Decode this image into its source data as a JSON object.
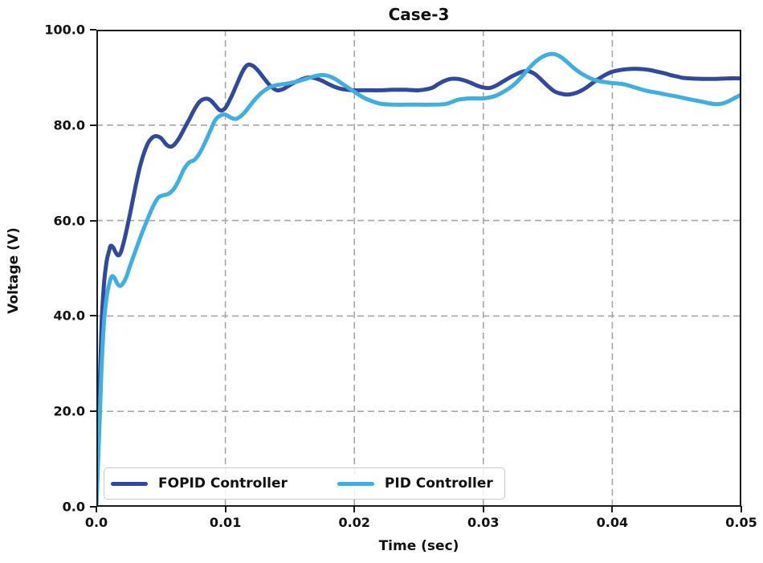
{
  "figure": {
    "title": "Case-3"
  },
  "chart_data": {
    "type": "line",
    "title": "Case-3",
    "xlabel": "Time (sec)",
    "ylabel": "Voltage (V)",
    "xlim": [
      0.0,
      0.05
    ],
    "ylim": [
      0.0,
      100.0
    ],
    "x_ticks": {
      "values": [
        0,
        0.01,
        0.02,
        0.03,
        0.04,
        0.05
      ],
      "labels": [
        "0.0",
        "0.01",
        "0.02",
        "0.03",
        "0.04",
        "0.05"
      ]
    },
    "y_ticks": {
      "values": [
        0,
        20,
        40,
        60,
        80,
        100
      ],
      "labels": [
        "0.0",
        "20.0",
        "40.0",
        "60.0",
        "80.0",
        "100.0"
      ]
    },
    "grid": {
      "show": true,
      "style": "dashed",
      "color": "#a6a6a6",
      "x_values": [
        0.01,
        0.02,
        0.03,
        0.04
      ],
      "y_values": [
        20,
        40,
        60,
        80
      ]
    },
    "legend": {
      "location": "lower left"
    },
    "spine_color": "#1a1a1a",
    "series": [
      {
        "name": "FOPID Controller",
        "color": "#30489E",
        "linewidth": 5,
        "points": [
          [
            0,
            0
          ],
          [
            0.0002,
            20
          ],
          [
            0.0004,
            38
          ],
          [
            0.0006,
            47
          ],
          [
            0.0008,
            51.5
          ],
          [
            0.001,
            53.8
          ],
          [
            0.0011,
            54.7
          ],
          [
            0.0013,
            54.4
          ],
          [
            0.0015,
            53.3
          ],
          [
            0.0017,
            52.7
          ],
          [
            0.0019,
            53.4
          ],
          [
            0.0022,
            56.3
          ],
          [
            0.0025,
            60
          ],
          [
            0.0028,
            64
          ],
          [
            0.0031,
            68
          ],
          [
            0.0034,
            71.5
          ],
          [
            0.0037,
            74.2
          ],
          [
            0.004,
            76.2
          ],
          [
            0.0043,
            77.3
          ],
          [
            0.0046,
            77.7
          ],
          [
            0.005,
            77.3
          ],
          [
            0.0054,
            76
          ],
          [
            0.0057,
            75.5
          ],
          [
            0.006,
            75.8
          ],
          [
            0.0064,
            77.2
          ],
          [
            0.0068,
            79.2
          ],
          [
            0.0072,
            81.2
          ],
          [
            0.0076,
            83.3
          ],
          [
            0.008,
            84.9
          ],
          [
            0.0084,
            85.5
          ],
          [
            0.0088,
            85.3
          ],
          [
            0.0092,
            84.2
          ],
          [
            0.0096,
            83.1
          ],
          [
            0.01,
            83.6
          ],
          [
            0.0104,
            85.6
          ],
          [
            0.0108,
            88
          ],
          [
            0.0112,
            90.5
          ],
          [
            0.0115,
            92
          ],
          [
            0.0118,
            92.7
          ],
          [
            0.0122,
            92.3
          ],
          [
            0.0126,
            91.2
          ],
          [
            0.013,
            89.8
          ],
          [
            0.0135,
            88.2
          ],
          [
            0.014,
            87.3
          ],
          [
            0.0145,
            87.6
          ],
          [
            0.015,
            88.4
          ],
          [
            0.0155,
            89.1
          ],
          [
            0.016,
            89.7
          ],
          [
            0.0165,
            90
          ],
          [
            0.017,
            89.8
          ],
          [
            0.0175,
            89.3
          ],
          [
            0.018,
            88.6
          ],
          [
            0.0185,
            88
          ],
          [
            0.019,
            87.6
          ],
          [
            0.0195,
            87.4
          ],
          [
            0.02,
            87.3
          ],
          [
            0.021,
            87.3
          ],
          [
            0.022,
            87.3
          ],
          [
            0.023,
            87.4
          ],
          [
            0.024,
            87.4
          ],
          [
            0.025,
            87.3
          ],
          [
            0.026,
            87.8
          ],
          [
            0.0265,
            88.6
          ],
          [
            0.027,
            89.3
          ],
          [
            0.0275,
            89.7
          ],
          [
            0.028,
            89.7
          ],
          [
            0.0285,
            89.4
          ],
          [
            0.029,
            88.9
          ],
          [
            0.0295,
            88.3
          ],
          [
            0.03,
            87.9
          ],
          [
            0.0305,
            87.8
          ],
          [
            0.031,
            88.3
          ],
          [
            0.0315,
            89.1
          ],
          [
            0.032,
            89.9
          ],
          [
            0.0325,
            90.6
          ],
          [
            0.033,
            91.2
          ],
          [
            0.0335,
            91.3
          ],
          [
            0.034,
            90.7
          ],
          [
            0.0345,
            89.5
          ],
          [
            0.035,
            88.2
          ],
          [
            0.0355,
            87.1
          ],
          [
            0.036,
            86.6
          ],
          [
            0.0365,
            86.4
          ],
          [
            0.037,
            86.6
          ],
          [
            0.0375,
            87.1
          ],
          [
            0.038,
            87.9
          ],
          [
            0.0385,
            88.9
          ],
          [
            0.039,
            89.8
          ],
          [
            0.0395,
            90.6
          ],
          [
            0.04,
            91.2
          ],
          [
            0.0405,
            91.5
          ],
          [
            0.041,
            91.7
          ],
          [
            0.0415,
            91.8
          ],
          [
            0.042,
            91.8
          ],
          [
            0.0425,
            91.7
          ],
          [
            0.043,
            91.5
          ],
          [
            0.0435,
            91.2
          ],
          [
            0.044,
            90.9
          ],
          [
            0.0445,
            90.5
          ],
          [
            0.045,
            90.2
          ],
          [
            0.0455,
            89.9
          ],
          [
            0.046,
            89.8
          ],
          [
            0.047,
            89.7
          ],
          [
            0.048,
            89.7
          ],
          [
            0.049,
            89.8
          ],
          [
            0.05,
            89.8
          ]
        ]
      },
      {
        "name": "PID Controller",
        "color": "#3FAEE1",
        "linewidth": 5,
        "points": [
          [
            0,
            0
          ],
          [
            0.0002,
            14
          ],
          [
            0.0004,
            29
          ],
          [
            0.0006,
            39
          ],
          [
            0.0008,
            44
          ],
          [
            0.001,
            46.8
          ],
          [
            0.0012,
            48.3
          ],
          [
            0.0014,
            48
          ],
          [
            0.0016,
            46.9
          ],
          [
            0.0018,
            46.3
          ],
          [
            0.002,
            46.6
          ],
          [
            0.0023,
            48
          ],
          [
            0.0026,
            50.4
          ],
          [
            0.003,
            53.4
          ],
          [
            0.0034,
            56.4
          ],
          [
            0.0037,
            58.5
          ],
          [
            0.004,
            60.5
          ],
          [
            0.0044,
            63
          ],
          [
            0.0048,
            64.8
          ],
          [
            0.0052,
            65.3
          ],
          [
            0.0056,
            65.6
          ],
          [
            0.006,
            66.6
          ],
          [
            0.0064,
            68.5
          ],
          [
            0.0068,
            70.8
          ],
          [
            0.0072,
            72.2
          ],
          [
            0.0076,
            72.7
          ],
          [
            0.008,
            74.1
          ],
          [
            0.0084,
            76.2
          ],
          [
            0.0088,
            78.6
          ],
          [
            0.0092,
            81
          ],
          [
            0.0096,
            82
          ],
          [
            0.01,
            82.2
          ],
          [
            0.0104,
            81.6
          ],
          [
            0.0108,
            81.3
          ],
          [
            0.0112,
            81.9
          ],
          [
            0.0116,
            83
          ],
          [
            0.012,
            84.4
          ],
          [
            0.0125,
            86
          ],
          [
            0.013,
            87.2
          ],
          [
            0.0135,
            88
          ],
          [
            0.014,
            88.4
          ],
          [
            0.0145,
            88.6
          ],
          [
            0.015,
            88.8
          ],
          [
            0.0155,
            89.1
          ],
          [
            0.016,
            89.5
          ],
          [
            0.0165,
            89.9
          ],
          [
            0.017,
            90.3
          ],
          [
            0.0175,
            90.5
          ],
          [
            0.018,
            90.3
          ],
          [
            0.0185,
            89.7
          ],
          [
            0.019,
            88.8
          ],
          [
            0.0195,
            87.9
          ],
          [
            0.02,
            87
          ],
          [
            0.0205,
            86.1
          ],
          [
            0.021,
            85.4
          ],
          [
            0.0215,
            84.9
          ],
          [
            0.022,
            84.5
          ],
          [
            0.023,
            84.3
          ],
          [
            0.024,
            84.3
          ],
          [
            0.025,
            84.3
          ],
          [
            0.026,
            84.3
          ],
          [
            0.027,
            84.4
          ],
          [
            0.0275,
            84.8
          ],
          [
            0.028,
            85.3
          ],
          [
            0.0285,
            85.5
          ],
          [
            0.029,
            85.6
          ],
          [
            0.03,
            85.6
          ],
          [
            0.0305,
            85.8
          ],
          [
            0.031,
            86.2
          ],
          [
            0.0315,
            86.9
          ],
          [
            0.032,
            87.7
          ],
          [
            0.0325,
            88.8
          ],
          [
            0.033,
            90.2
          ],
          [
            0.0335,
            91.8
          ],
          [
            0.034,
            93.2
          ],
          [
            0.0345,
            94.2
          ],
          [
            0.035,
            94.8
          ],
          [
            0.0355,
            94.9
          ],
          [
            0.036,
            94.3
          ],
          [
            0.0365,
            93.2
          ],
          [
            0.037,
            92
          ],
          [
            0.0375,
            91
          ],
          [
            0.038,
            90.2
          ],
          [
            0.0385,
            89.6
          ],
          [
            0.039,
            89.2
          ],
          [
            0.0395,
            89
          ],
          [
            0.04,
            88.8
          ],
          [
            0.0405,
            88.7
          ],
          [
            0.041,
            88.5
          ],
          [
            0.0415,
            88.1
          ],
          [
            0.042,
            87.7
          ],
          [
            0.0425,
            87.3
          ],
          [
            0.043,
            87
          ],
          [
            0.0435,
            86.8
          ],
          [
            0.044,
            86.5
          ],
          [
            0.045,
            86
          ],
          [
            0.046,
            85.4
          ],
          [
            0.047,
            84.9
          ],
          [
            0.0475,
            84.6
          ],
          [
            0.048,
            84.4
          ],
          [
            0.0485,
            84.5
          ],
          [
            0.049,
            85
          ],
          [
            0.0495,
            85.7
          ],
          [
            0.05,
            86.4
          ]
        ]
      }
    ]
  }
}
